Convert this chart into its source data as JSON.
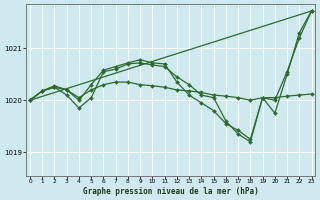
{
  "background_color": "#ceeaf0",
  "grid_color": "#ffffff",
  "line_color": "#2d6a2d",
  "title": "Graphe pression niveau de la mer (hPa)",
  "xlim": [
    -0.3,
    23.3
  ],
  "ylim": [
    1018.55,
    1021.85
  ],
  "yticks": [
    1019,
    1020,
    1021
  ],
  "xticks": [
    0,
    1,
    2,
    3,
    4,
    5,
    6,
    7,
    8,
    9,
    10,
    11,
    12,
    13,
    14,
    15,
    16,
    17,
    18,
    19,
    20,
    21,
    22,
    23
  ],
  "series": [
    {
      "x": [
        0,
        23
      ],
      "y": [
        1020.0,
        1021.72
      ],
      "marker": "none",
      "markersize": 0,
      "linewidth": 0.9
    },
    {
      "x": [
        0,
        1,
        2,
        3,
        4,
        5,
        6,
        7,
        8,
        9,
        10,
        11,
        12,
        13,
        14,
        15,
        16,
        17,
        18,
        19,
        20,
        21,
        22,
        23
      ],
      "y": [
        1020.0,
        1020.18,
        1020.25,
        1020.2,
        1020.05,
        1020.2,
        1020.3,
        1020.35,
        1020.35,
        1020.3,
        1020.28,
        1020.25,
        1020.2,
        1020.18,
        1020.15,
        1020.1,
        1020.08,
        1020.05,
        1020.0,
        1020.05,
        1020.05,
        1020.08,
        1020.1,
        1020.12
      ],
      "marker": "D",
      "markersize": 2.0,
      "linewidth": 0.9
    },
    {
      "x": [
        0,
        1,
        2,
        3,
        4,
        5,
        6,
        7,
        8,
        9,
        10,
        11,
        12,
        13,
        14,
        15,
        16,
        17,
        18,
        19,
        20,
        21,
        22,
        23
      ],
      "y": [
        1020.0,
        1020.18,
        1020.25,
        1020.1,
        1019.85,
        1020.05,
        1020.55,
        1020.6,
        1020.7,
        1020.72,
        1020.68,
        1020.65,
        1020.45,
        1020.3,
        1020.1,
        1020.05,
        1019.6,
        1019.35,
        1019.2,
        1020.05,
        1019.75,
        1020.5,
        1021.3,
        1021.72
      ],
      "marker": "D",
      "markersize": 2.0,
      "linewidth": 0.9
    },
    {
      "x": [
        0,
        1,
        2,
        3,
        4,
        5,
        6,
        7,
        8,
        9,
        10,
        11,
        12,
        13,
        14,
        15,
        16,
        17,
        18,
        19,
        20,
        21,
        22,
        23
      ],
      "y": [
        1020.0,
        1020.18,
        1020.28,
        1020.2,
        1020.0,
        1020.3,
        1020.58,
        1020.65,
        1020.72,
        1020.78,
        1020.72,
        1020.7,
        1020.35,
        1020.1,
        1019.95,
        1019.8,
        1019.55,
        1019.42,
        1019.25,
        1020.05,
        1020.0,
        1020.55,
        1021.2,
        1021.72
      ],
      "marker": "D",
      "markersize": 2.0,
      "linewidth": 0.9
    }
  ]
}
